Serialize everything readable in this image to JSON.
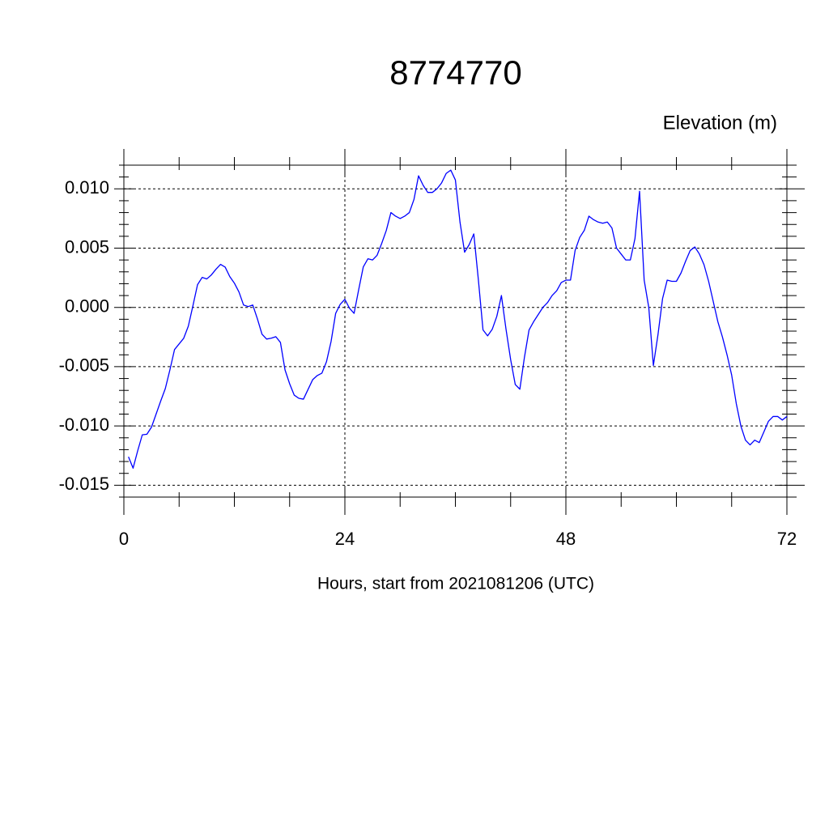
{
  "chart_data": {
    "type": "line",
    "title": "8774770",
    "y_label": "Elevation (m)",
    "x_label": "Hours, start from 2021081206 (UTC)",
    "xlim": [
      0,
      72
    ],
    "xticks": [
      0,
      24,
      48,
      72
    ],
    "xminorticks": [
      6,
      12,
      18,
      30,
      36,
      42,
      54,
      60,
      66
    ],
    "ylim": [
      -0.016,
      0.012
    ],
    "yticks": [
      {
        "value": -0.015,
        "label": "-0.015"
      },
      {
        "value": -0.01,
        "label": "-0.010"
      },
      {
        "value": -0.005,
        "label": "-0.005"
      },
      {
        "value": 0,
        "label": "0.000"
      },
      {
        "value": 0.005,
        "label": "0.005"
      },
      {
        "value": 0.01,
        "label": "0.010"
      }
    ],
    "yminorticks": [
      -0.016,
      -0.014,
      -0.013,
      -0.012,
      -0.011,
      -0.009,
      -0.008,
      -0.007,
      -0.006,
      -0.004,
      -0.003,
      -0.002,
      -0.001,
      0.001,
      0.002,
      0.003,
      0.004,
      0.006,
      0.007,
      0.008,
      0.009,
      0.011,
      0.012
    ],
    "grid": true,
    "x": [
      0.5,
      1,
      1.5,
      2,
      2.5,
      3,
      3.5,
      4,
      4.5,
      5,
      5.5,
      6,
      6.5,
      7,
      7.5,
      8,
      8.5,
      9,
      9.5,
      10,
      10.5,
      11,
      11.5,
      12,
      12.5,
      13,
      13.5,
      14,
      14.5,
      15,
      15.5,
      16,
      16.5,
      17,
      17.5,
      18,
      18.5,
      19,
      19.5,
      20,
      20.5,
      21,
      21.5,
      22,
      22.5,
      23,
      23.5,
      24,
      24.5,
      25,
      25.5,
      26,
      26.5,
      27,
      27.5,
      28,
      28.5,
      29,
      29.5,
      30,
      30.5,
      31,
      31.5,
      32,
      32.5,
      33,
      33.5,
      34,
      34.5,
      35,
      35.5,
      36,
      36.5,
      37,
      37.5,
      38,
      38.5,
      39,
      39.5,
      40,
      40.5,
      41,
      41.5,
      42,
      42.5,
      43,
      43.5,
      44,
      44.5,
      45,
      45.5,
      46,
      46.5,
      47,
      47.5,
      48,
      48.5,
      49,
      49.5,
      50,
      50.5,
      51,
      51.5,
      52,
      52.5,
      53,
      53.5,
      54,
      54.5,
      55,
      55.5,
      56,
      56.5,
      57,
      57.5,
      58,
      58.5,
      59,
      59.5,
      60,
      60.5,
      61,
      61.5,
      62,
      62.5,
      63,
      63.5,
      64,
      64.5,
      65,
      65.5,
      66,
      66.5,
      67,
      67.5,
      68,
      68.5,
      69,
      69.5,
      70,
      70.5,
      71,
      71.5,
      72
    ],
    "series": [
      {
        "color": "#0000ff",
        "values": [
          -0.0126,
          -0.01356,
          -0.0121,
          -0.01075,
          -0.0107,
          -0.0101,
          -0.009,
          -0.0079,
          -0.00685,
          -0.00527,
          -0.00356,
          -0.00308,
          -0.0026,
          -0.00158,
          0.00014,
          0.00192,
          0.00253,
          0.0024,
          0.00274,
          0.00322,
          0.00363,
          0.0034,
          0.0026,
          0.00205,
          0.0013,
          0.0002,
          7e-05,
          0.0002,
          -0.00096,
          -0.00226,
          -0.00267,
          -0.0026,
          -0.00247,
          -0.00295,
          -0.00527,
          -0.00644,
          -0.0074,
          -0.00767,
          -0.00774,
          -0.00692,
          -0.0061,
          -0.00575,
          -0.00555,
          -0.00459,
          -0.00288,
          -0.0005,
          0.00027,
          0.00068,
          -7e-05,
          -0.0005,
          0.0015,
          0.00342,
          0.0041,
          0.004,
          0.0044,
          0.0054,
          0.0065,
          0.008,
          0.0077,
          0.0075,
          0.0077,
          0.008,
          0.0091,
          0.0111,
          0.0103,
          0.0097,
          0.0097,
          0.01,
          0.0105,
          0.0113,
          0.01158,
          0.01075,
          0.0072,
          0.00466,
          0.0053,
          0.0062,
          0.0023,
          -0.0019,
          -0.0024,
          -0.00185,
          -0.00075,
          0.001,
          -0.00185,
          -0.0044,
          -0.0065,
          -0.0069,
          -0.0042,
          -0.0019,
          -0.0012,
          -0.0006,
          0,
          0.0004,
          0.001,
          0.0014,
          0.0021,
          0.0023,
          0.0023,
          0.0048,
          0.0059,
          0.0065,
          0.0077,
          0.0074,
          0.0072,
          0.0071,
          0.0072,
          0.0067,
          0.005,
          0.0045,
          0.004,
          0.004,
          0.0058,
          0.0098,
          0.0023,
          0,
          -0.0049,
          -0.0023,
          0.00075,
          0.0023,
          0.0022,
          0.0022,
          0.0029,
          0.0039,
          0.0048,
          0.0051,
          0.0045,
          0.0036,
          0.0022,
          0.0005,
          -0.0012,
          -0.0025,
          -0.004,
          -0.0057,
          -0.0081,
          -0.01,
          -0.0112,
          -0.0116,
          -0.0112,
          -0.0114,
          -0.0105,
          -0.0096,
          -0.0092,
          -0.0092,
          -0.0095,
          -0.0092
        ]
      }
    ]
  }
}
